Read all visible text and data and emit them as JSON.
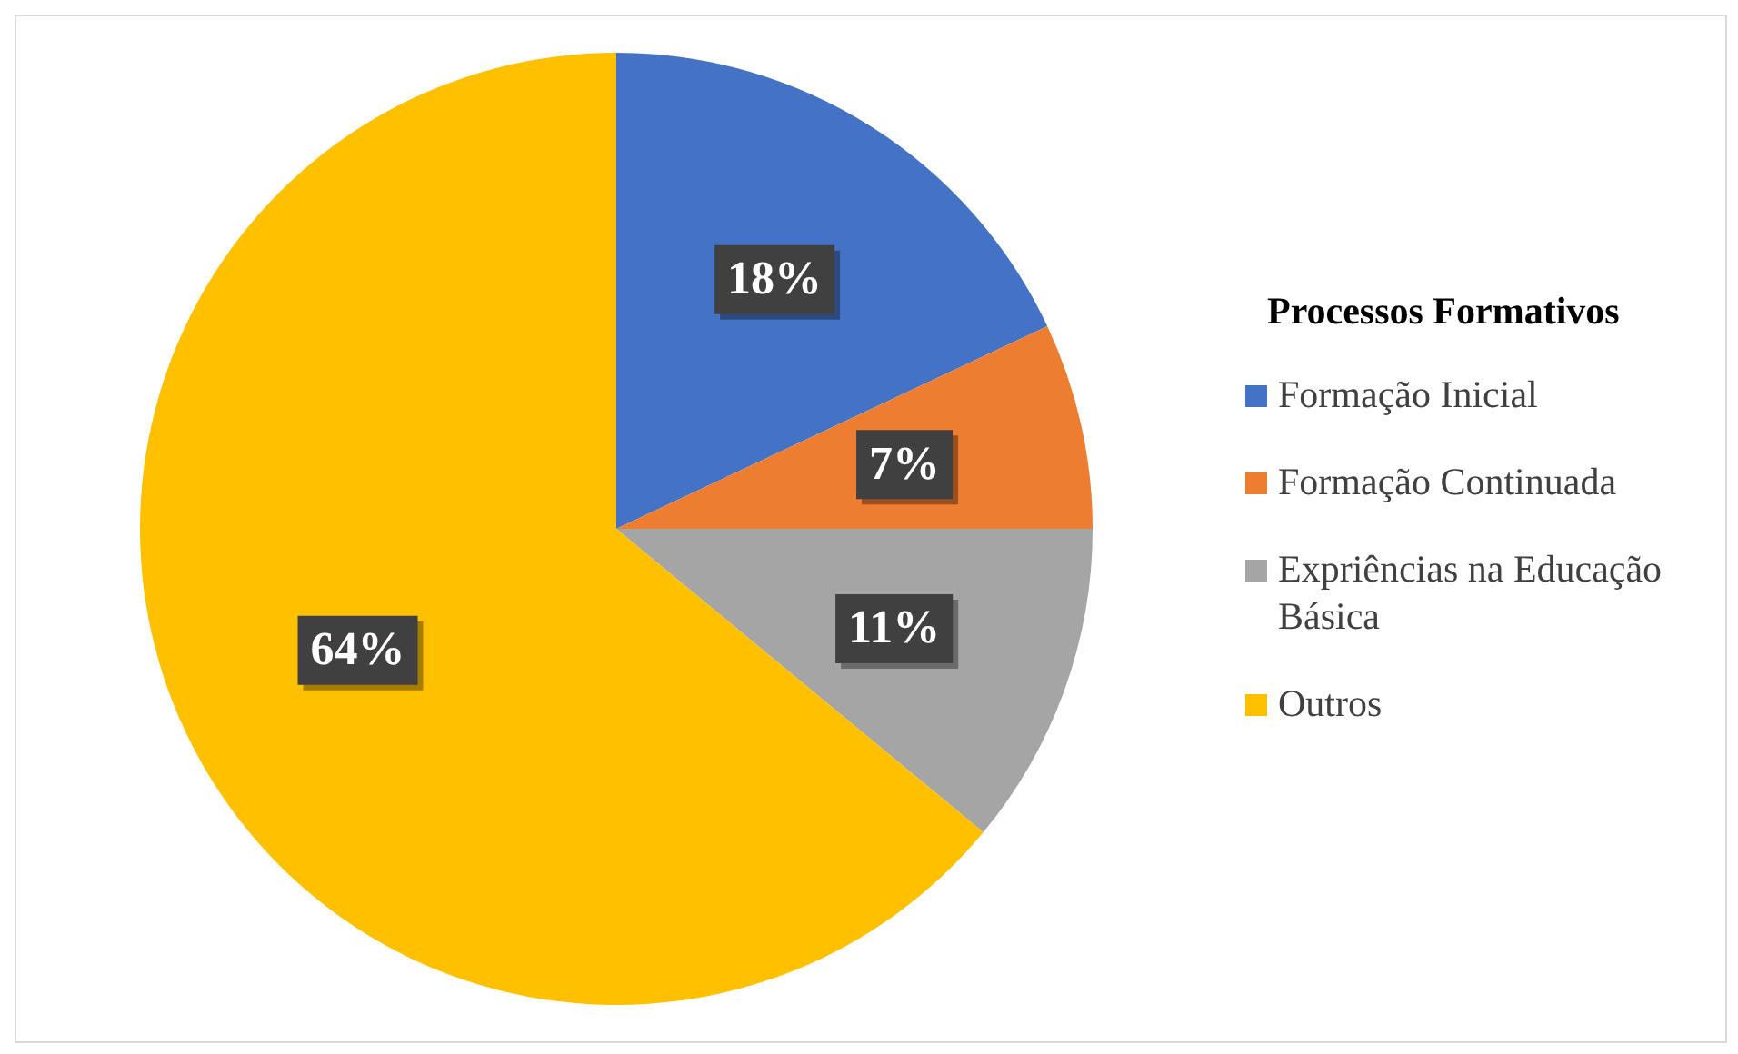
{
  "chart_data": {
    "type": "pie",
    "legend_title": "Processos Formativos",
    "categories": [
      "Formação Inicial",
      "Formação Continuada",
      "Expriências na Educação Básica",
      "Outros"
    ],
    "values": [
      18,
      7,
      11,
      64
    ],
    "colors": [
      "#4472c4",
      "#ed7d31",
      "#a5a5a5",
      "#ffc000"
    ],
    "value_labels": [
      "18%",
      "7%",
      "11%",
      "64%"
    ],
    "legend": "right"
  }
}
